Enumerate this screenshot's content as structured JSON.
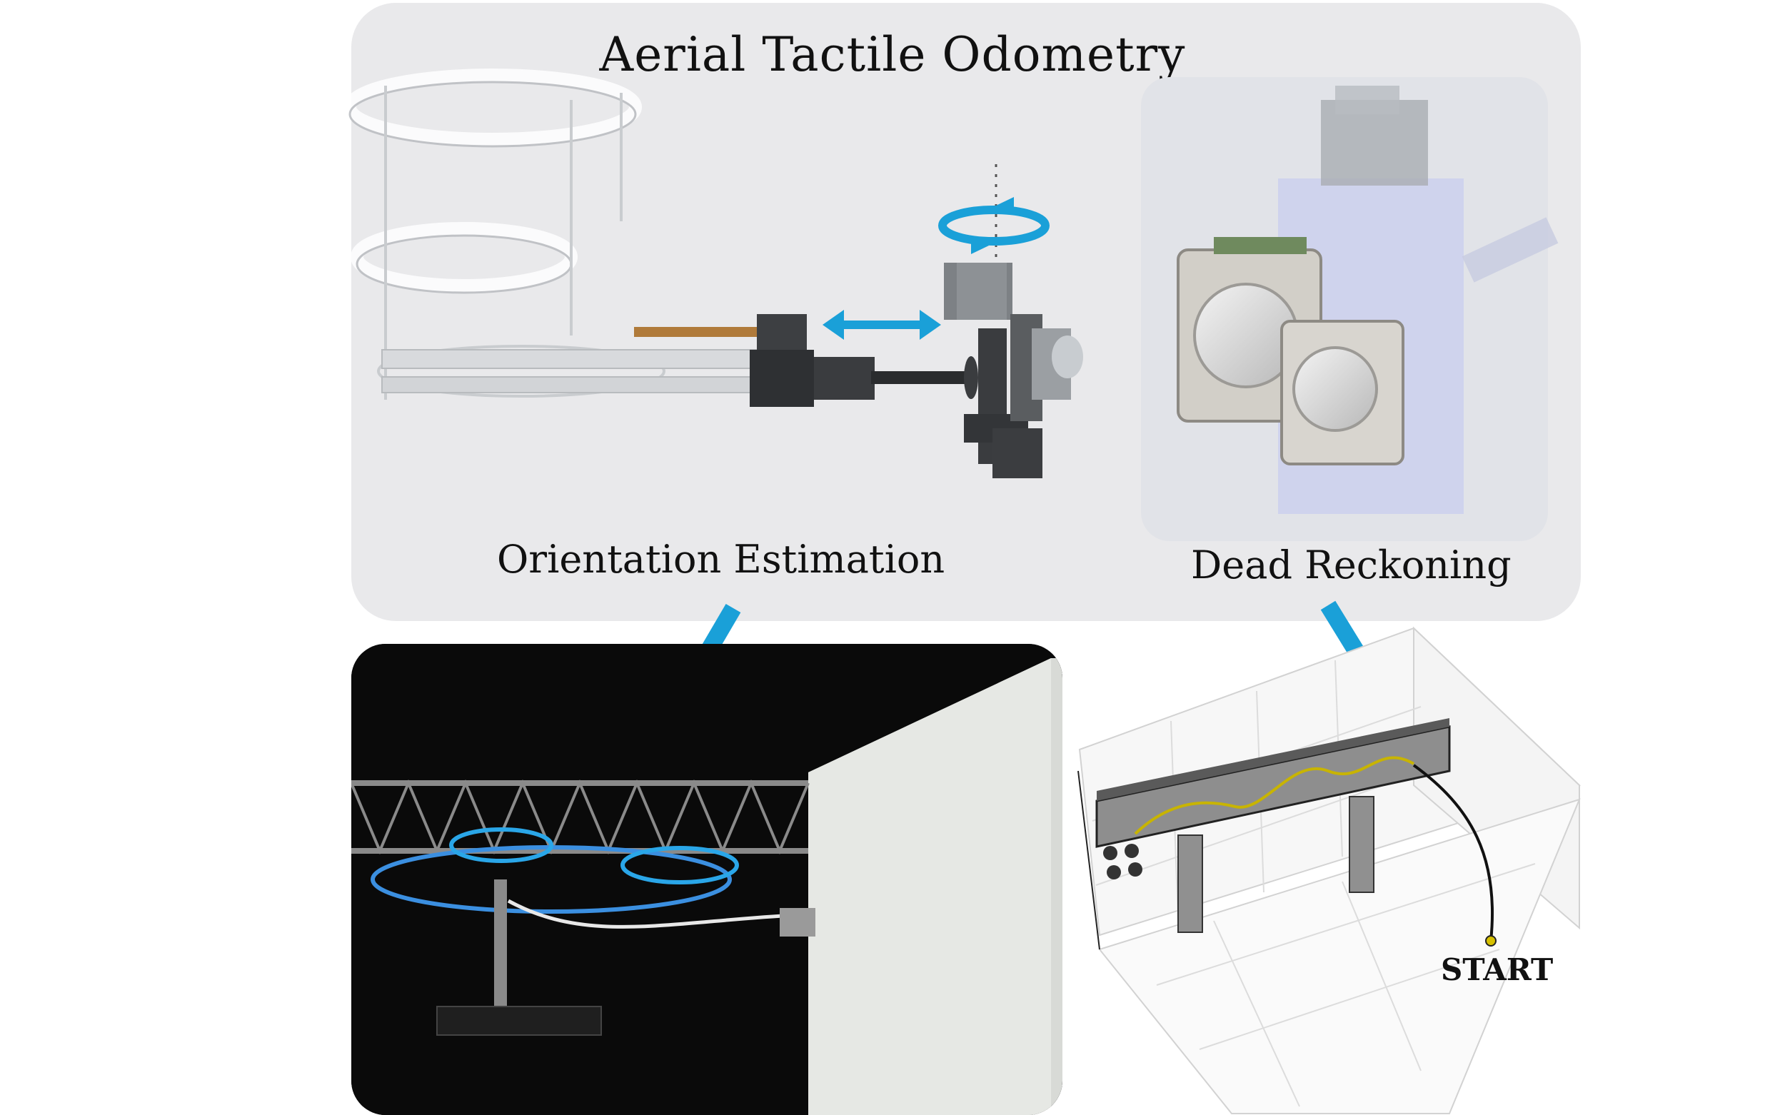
{
  "title": "Aerial Tactile Odometry",
  "labels": {
    "orientation": "Orientation Estimation",
    "dead_reckoning": "Dead Reckoning",
    "start": "START"
  },
  "colors": {
    "arrow": "#1aa0d8",
    "panel": "#e9e9eb",
    "trajectory": "#c8b400",
    "path": "#111111"
  }
}
